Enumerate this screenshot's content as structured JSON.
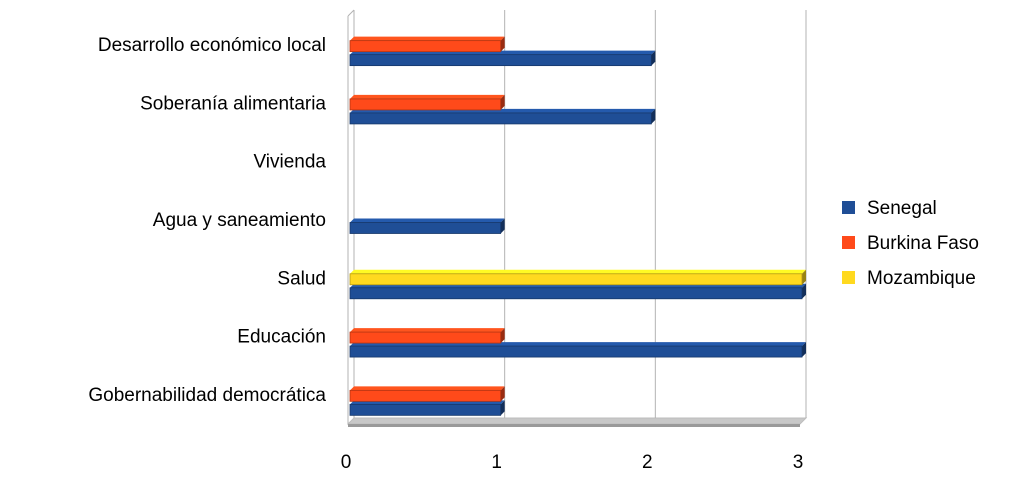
{
  "chart_data": {
    "type": "bar",
    "orientation": "horizontal",
    "title": "",
    "xlabel": "",
    "ylabel": "",
    "categories": [
      "Desarrollo económico local",
      "Soberanía alimentaria",
      "Vivienda",
      "Agua y saneamiento",
      "Salud",
      "Educación",
      "Gobernabilidad democrática"
    ],
    "series": [
      {
        "name": "Senegal",
        "color": "#1f4e96",
        "values": [
          2,
          2,
          0,
          1,
          3,
          3,
          1
        ]
      },
      {
        "name": "Burkina Faso",
        "color": "#ff4a1a",
        "values": [
          1,
          1,
          0,
          0,
          0,
          1,
          1
        ]
      },
      {
        "name": "Mozambique",
        "color": "#ffd91f",
        "values": [
          0,
          0,
          0,
          0,
          3,
          0,
          0
        ]
      }
    ],
    "xlim": [
      0,
      3
    ],
    "xticks": [
      "0",
      "1",
      "2",
      "3"
    ],
    "grid": true,
    "legend": "right",
    "style": "3d"
  }
}
